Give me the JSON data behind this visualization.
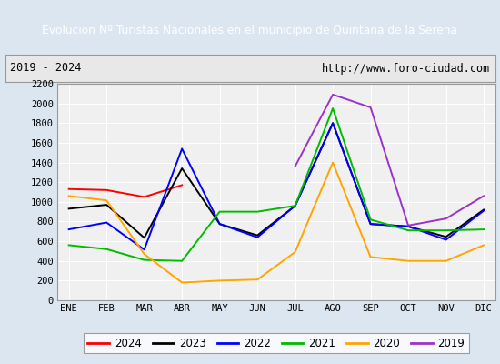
{
  "title": "Evolucion Nº Turistas Nacionales en el municipio de Quintana de la Serena",
  "subtitle_left": "2019 - 2024",
  "subtitle_right": "http://www.foro-ciudad.com",
  "title_bg_color": "#4472c4",
  "title_text_color": "#ffffff",
  "months": [
    "ENE",
    "FEB",
    "MAR",
    "ABR",
    "MAY",
    "JUN",
    "JUL",
    "AGO",
    "SEP",
    "OCT",
    "NOV",
    "DIC"
  ],
  "ylim": [
    0,
    2200
  ],
  "yticks": [
    0,
    200,
    400,
    600,
    800,
    1000,
    1200,
    1400,
    1600,
    1800,
    2000,
    2200
  ],
  "series": {
    "2024": {
      "color": "#ff0000",
      "linewidth": 1.5,
      "data": [
        1130,
        1120,
        1050,
        1170,
        null,
        null,
        null,
        null,
        null,
        null,
        null,
        null
      ]
    },
    "2023": {
      "color": "#000000",
      "linewidth": 1.5,
      "data": [
        930,
        970,
        635,
        1340,
        775,
        660,
        960,
        1800,
        775,
        750,
        645,
        920
      ]
    },
    "2022": {
      "color": "#0000ff",
      "linewidth": 1.5,
      "data": [
        720,
        790,
        515,
        1540,
        775,
        640,
        960,
        1800,
        775,
        750,
        615,
        910
      ]
    },
    "2021": {
      "color": "#00bb00",
      "linewidth": 1.5,
      "data": [
        560,
        520,
        410,
        400,
        900,
        900,
        960,
        1950,
        820,
        710,
        710,
        720
      ]
    },
    "2020": {
      "color": "#ffa500",
      "linewidth": 1.5,
      "data": [
        1060,
        1015,
        470,
        180,
        200,
        210,
        490,
        1400,
        440,
        400,
        400,
        560
      ]
    },
    "2019": {
      "color": "#9933cc",
      "linewidth": 1.5,
      "data": [
        null,
        null,
        null,
        null,
        null,
        null,
        1360,
        2090,
        1960,
        760,
        830,
        1060
      ]
    }
  },
  "legend_order": [
    "2024",
    "2023",
    "2022",
    "2021",
    "2020",
    "2019"
  ],
  "plot_bg_color": "#f0f0f0",
  "grid_color": "#ffffff",
  "outer_bg_color": "#dce6f1",
  "subtitle_bg_color": "#e8e8e8"
}
